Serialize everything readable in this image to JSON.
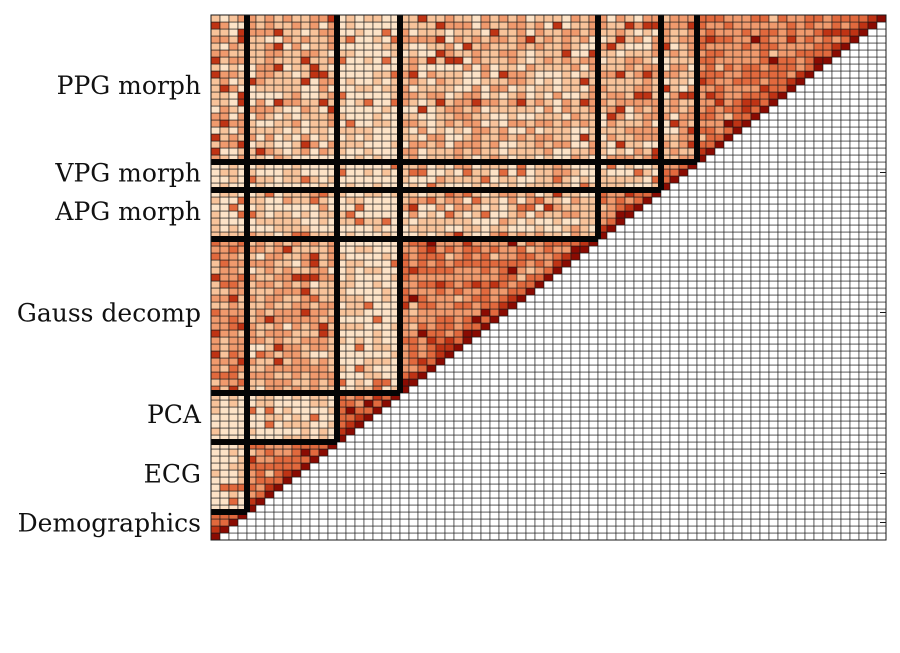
{
  "chart_data": {
    "type": "heatmap",
    "title": "",
    "xlabel": "",
    "ylabel": "",
    "matrix_size": 75,
    "orientation": "lower-left triangle colored, row index increases upward",
    "colormap": [
      "#ffffff",
      "#fde3c7",
      "#f8c39a",
      "#f09a6d",
      "#e1693d",
      "#bf3314",
      "#8a0b02"
    ],
    "groups": [
      {
        "label": "Demographics",
        "start": 0,
        "end": 4
      },
      {
        "label": "ECG",
        "start": 4,
        "end": 14
      },
      {
        "label": "PCA",
        "start": 14,
        "end": 21
      },
      {
        "label": "Gauss decomp",
        "start": 21,
        "end": 43
      },
      {
        "label": "APG morph",
        "start": 43,
        "end": 50
      },
      {
        "label": "VPG morph",
        "start": 50,
        "end": 54
      },
      {
        "label": "PPG morph",
        "start": 54,
        "end": 75
      }
    ],
    "value_range": [
      0,
      1
    ],
    "diagonal_value": 1
  }
}
